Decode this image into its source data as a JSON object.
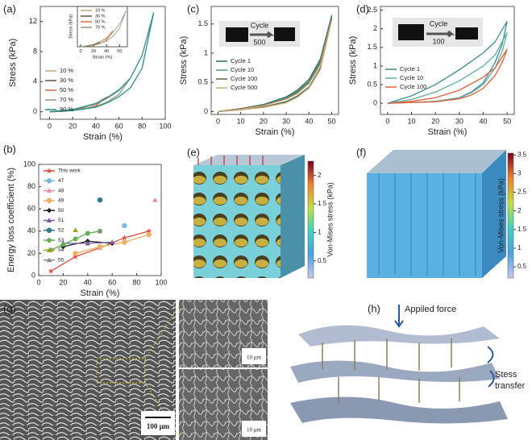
{
  "panel_labels": [
    "(a)",
    "(b)",
    "(c)",
    "(d)",
    "(e)",
    "(f)",
    "(g)",
    "(h)"
  ],
  "chart_data": [
    {
      "type": "line",
      "x_label": "Strain (%)",
      "y_label": "Stress (kPa)",
      "xlim": [
        -8,
        100
      ],
      "ylim": [
        -1,
        14
      ],
      "xticks": [
        0,
        20,
        40,
        60,
        80,
        100
      ],
      "yticks": [
        0,
        4,
        8,
        12
      ],
      "legend": "center left",
      "series": [
        {
          "name": "10 %",
          "color": "#c8a27a",
          "x": [
            0,
            5,
            10,
            5,
            0
          ],
          "values": [
            0,
            0.05,
            0.15,
            0.05,
            0
          ]
        },
        {
          "name": "30 %",
          "color": "#6b4a3a",
          "x": [
            0,
            10,
            20,
            30,
            20,
            10,
            0
          ],
          "values": [
            0,
            0.1,
            0.25,
            0.5,
            0.2,
            0.05,
            0
          ]
        },
        {
          "name": "50 %",
          "color": "#e06a3a",
          "x": [
            0,
            10,
            20,
            30,
            40,
            50,
            40,
            30,
            20,
            10,
            0
          ],
          "values": [
            0,
            0.1,
            0.3,
            0.6,
            1.1,
            2,
            0.8,
            0.4,
            0.2,
            0.05,
            0
          ]
        },
        {
          "name": "70 %",
          "color": "#8a9a80",
          "x": [
            0,
            20,
            40,
            50,
            60,
            70,
            60,
            50,
            40,
            20,
            0
          ],
          "values": [
            0,
            0.3,
            1,
            1.8,
            2.8,
            4.5,
            2.3,
            1.3,
            0.7,
            0.15,
            0
          ]
        },
        {
          "name": "90 %",
          "color": "#2f8f8a",
          "x": [
            0,
            20,
            40,
            50,
            60,
            70,
            80,
            90,
            80,
            70,
            60,
            50,
            40,
            20,
            0
          ],
          "values": [
            0,
            0.3,
            1.1,
            1.9,
            2.9,
            4.5,
            7.5,
            13.2,
            5.8,
            3.2,
            2,
            1.2,
            0.6,
            0.15,
            0
          ]
        }
      ]
    },
    {
      "type": "line",
      "x_label": "Strain (%)",
      "y_label": "Stress (kPa)",
      "xlim": [
        -5,
        72
      ],
      "ylim": [
        0,
        5
      ],
      "xticks": [
        0,
        20,
        40,
        60
      ],
      "legend": "upper left",
      "series": [
        {
          "name": "10 %",
          "color": "#c8a27a",
          "x": [
            0,
            5,
            10,
            5,
            0
          ],
          "values": [
            0,
            0.05,
            0.15,
            0.05,
            0
          ]
        },
        {
          "name": "30 %",
          "color": "#6b4a3a",
          "x": [
            0,
            10,
            20,
            30,
            20,
            10,
            0
          ],
          "values": [
            0,
            0.1,
            0.25,
            0.5,
            0.2,
            0.05,
            0
          ]
        },
        {
          "name": "50 %",
          "color": "#e06a3a",
          "x": [
            0,
            10,
            20,
            30,
            40,
            50,
            40,
            30,
            20,
            10,
            0
          ],
          "values": [
            0,
            0.1,
            0.3,
            0.6,
            1.1,
            2,
            0.8,
            0.4,
            0.2,
            0.05,
            0
          ]
        },
        {
          "name": "70 %",
          "color": "#8a9a80",
          "x": [
            0,
            20,
            40,
            50,
            60,
            70,
            60,
            50,
            40,
            20,
            0
          ],
          "values": [
            0,
            0.3,
            1,
            1.8,
            2.8,
            4.5,
            2.3,
            1.3,
            0.7,
            0.15,
            0
          ]
        }
      ]
    },
    {
      "type": "line",
      "x_label": "Strain (%)",
      "y_label": "Energy loss coefficient (%)",
      "xlim": [
        0,
        100
      ],
      "ylim": [
        0,
        100
      ],
      "xticks": [
        0,
        20,
        40,
        60,
        80,
        100
      ],
      "yticks": [
        0,
        20,
        40,
        60,
        80,
        100
      ],
      "legend": "upper left",
      "series": [
        {
          "name": "This work",
          "color": "#e04a3a",
          "marker": "star",
          "x": [
            10,
            30,
            50,
            70,
            90
          ],
          "values": [
            4,
            17,
            25,
            34,
            40
          ]
        },
        {
          "name": "47",
          "color": "#7ab8e0",
          "marker": "circle",
          "x": [
            70
          ],
          "values": [
            45
          ]
        },
        {
          "name": "48",
          "color": "#f08aa0",
          "marker": "triangle",
          "x": [
            95
          ],
          "values": [
            68
          ]
        },
        {
          "name": "49",
          "color": "#f0b060",
          "marker": "circle",
          "x": [
            30,
            50,
            70,
            90
          ],
          "values": [
            20,
            26,
            30,
            37
          ]
        },
        {
          "name": "50",
          "color": "#202020",
          "marker": "diamond",
          "x": [
            20,
            40,
            60
          ],
          "values": [
            26,
            31,
            29
          ]
        },
        {
          "name": "51",
          "color": "#7a5aa0",
          "marker": "triangle",
          "x": [
            20,
            40,
            60
          ],
          "values": [
            29,
            29,
            30
          ]
        },
        {
          "name": "52",
          "color": "#2a7a8a",
          "marker": "circle",
          "x": [
            50
          ],
          "values": [
            68
          ]
        },
        {
          "name": "53",
          "color": "#60b050",
          "marker": "hexagon",
          "x": [
            10,
            20,
            30,
            40,
            50
          ],
          "values": [
            23,
            28,
            33,
            38,
            40
          ]
        },
        {
          "name": "54",
          "color": "#a0a020",
          "marker": "triangle",
          "x": [
            30
          ],
          "values": [
            41
          ]
        },
        {
          "name": "55",
          "color": "#8a8a8a",
          "marker": "triangle",
          "x": [
            50
          ],
          "values": [
            40
          ]
        }
      ]
    },
    {
      "type": "line",
      "x_label": "Strain (%)",
      "y_label": "Stress (kPa)",
      "xlim": [
        -3,
        53
      ],
      "ylim": [
        -0.05,
        1.8
      ],
      "xticks": [
        0,
        10,
        20,
        30,
        40,
        50
      ],
      "yticks": [
        0,
        0.5,
        1,
        1.5
      ],
      "legend": "center left",
      "series": [
        {
          "name": "Cycle 1",
          "color": "#2a6e6a",
          "x": [
            0,
            10,
            20,
            30,
            35,
            40,
            45,
            50,
            45,
            40,
            35,
            30,
            20,
            10,
            0
          ],
          "values": [
            0,
            0.05,
            0.12,
            0.25,
            0.37,
            0.55,
            0.9,
            1.65,
            0.75,
            0.42,
            0.27,
            0.17,
            0.08,
            0.03,
            0
          ]
        },
        {
          "name": "Cycle 10",
          "color": "#4aa08a",
          "x": [
            0,
            10,
            20,
            30,
            35,
            40,
            45,
            50,
            45,
            40,
            35,
            30,
            20,
            10,
            0
          ],
          "values": [
            0,
            0.05,
            0.11,
            0.23,
            0.35,
            0.52,
            0.87,
            1.62,
            0.74,
            0.41,
            0.26,
            0.16,
            0.08,
            0.03,
            0
          ]
        },
        {
          "name": "Cycle 100",
          "color": "#6a6040",
          "x": [
            0,
            10,
            20,
            30,
            35,
            40,
            45,
            50,
            45,
            40,
            35,
            30,
            20,
            10,
            0
          ],
          "values": [
            0,
            0.05,
            0.11,
            0.22,
            0.33,
            0.5,
            0.84,
            1.6,
            0.73,
            0.4,
            0.26,
            0.16,
            0.08,
            0.03,
            0
          ]
        },
        {
          "name": "Cycle 500",
          "color": "#c8a878",
          "x": [
            0,
            10,
            20,
            30,
            35,
            40,
            45,
            50,
            45,
            40,
            35,
            30,
            20,
            10,
            0
          ],
          "values": [
            0,
            0.04,
            0.1,
            0.21,
            0.31,
            0.48,
            0.8,
            1.57,
            0.72,
            0.4,
            0.25,
            0.15,
            0.07,
            0.03,
            0
          ]
        }
      ]
    },
    {
      "type": "line",
      "x_label": "Strain (%)",
      "y_label": "Stress (kPa)",
      "xlim": [
        -3,
        53
      ],
      "ylim": [
        -0.3,
        2.6
      ],
      "xticks": [
        0,
        10,
        20,
        30,
        40,
        50
      ],
      "yticks": [
        0,
        0.5,
        1,
        1.5,
        2,
        2.5
      ],
      "legend": "center left",
      "series": [
        {
          "name": "Cycle 1",
          "color": "#3a8a90",
          "x": [
            0,
            10,
            20,
            30,
            40,
            45,
            50,
            48,
            45,
            40,
            35,
            30,
            20,
            10,
            0
          ],
          "values": [
            0,
            0.2,
            0.5,
            0.9,
            1.35,
            1.65,
            2.2,
            1.6,
            1.1,
            0.55,
            0.3,
            0.15,
            0.05,
            0.02,
            0
          ]
        },
        {
          "name": "Cycle 10",
          "color": "#5ab0a0",
          "x": [
            0,
            10,
            20,
            30,
            40,
            45,
            50,
            48,
            45,
            40,
            35,
            30,
            20,
            10,
            0
          ],
          "values": [
            0,
            0.1,
            0.3,
            0.6,
            1,
            1.3,
            1.9,
            1.4,
            0.95,
            0.5,
            0.28,
            0.14,
            0.05,
            0.02,
            0
          ]
        },
        {
          "name": "Cycle 100",
          "color": "#e0603a",
          "x": [
            0,
            10,
            20,
            30,
            40,
            45,
            50,
            48,
            45,
            40,
            35,
            30,
            20,
            10,
            0
          ],
          "values": [
            0,
            0.05,
            0.15,
            0.35,
            0.7,
            0.95,
            1.45,
            1.1,
            0.75,
            0.4,
            0.22,
            0.12,
            0.04,
            0.02,
            0
          ]
        }
      ]
    }
  ],
  "photo_labels": [
    {
      "text": "Cycle",
      "count": "500"
    },
    {
      "text": "Cycle",
      "count": "100"
    }
  ],
  "colorbars": [
    {
      "label": "Von-Mises stress (kPa)",
      "lim": [
        0.2,
        2.25
      ],
      "ticks": [
        0.5,
        1,
        1.5,
        2
      ]
    },
    {
      "label": "Von-Mises stress (kPa)",
      "lim": [
        0.2,
        3.55
      ],
      "ticks": [
        0.5,
        1,
        1.5,
        2,
        2.5,
        3,
        3.5
      ]
    }
  ],
  "sem": {
    "scale_bars": [
      "100 μm",
      "10 μm",
      "10 μm"
    ]
  },
  "diagram": {
    "labels": [
      "Appiled force",
      "Stess transfer"
    ]
  }
}
